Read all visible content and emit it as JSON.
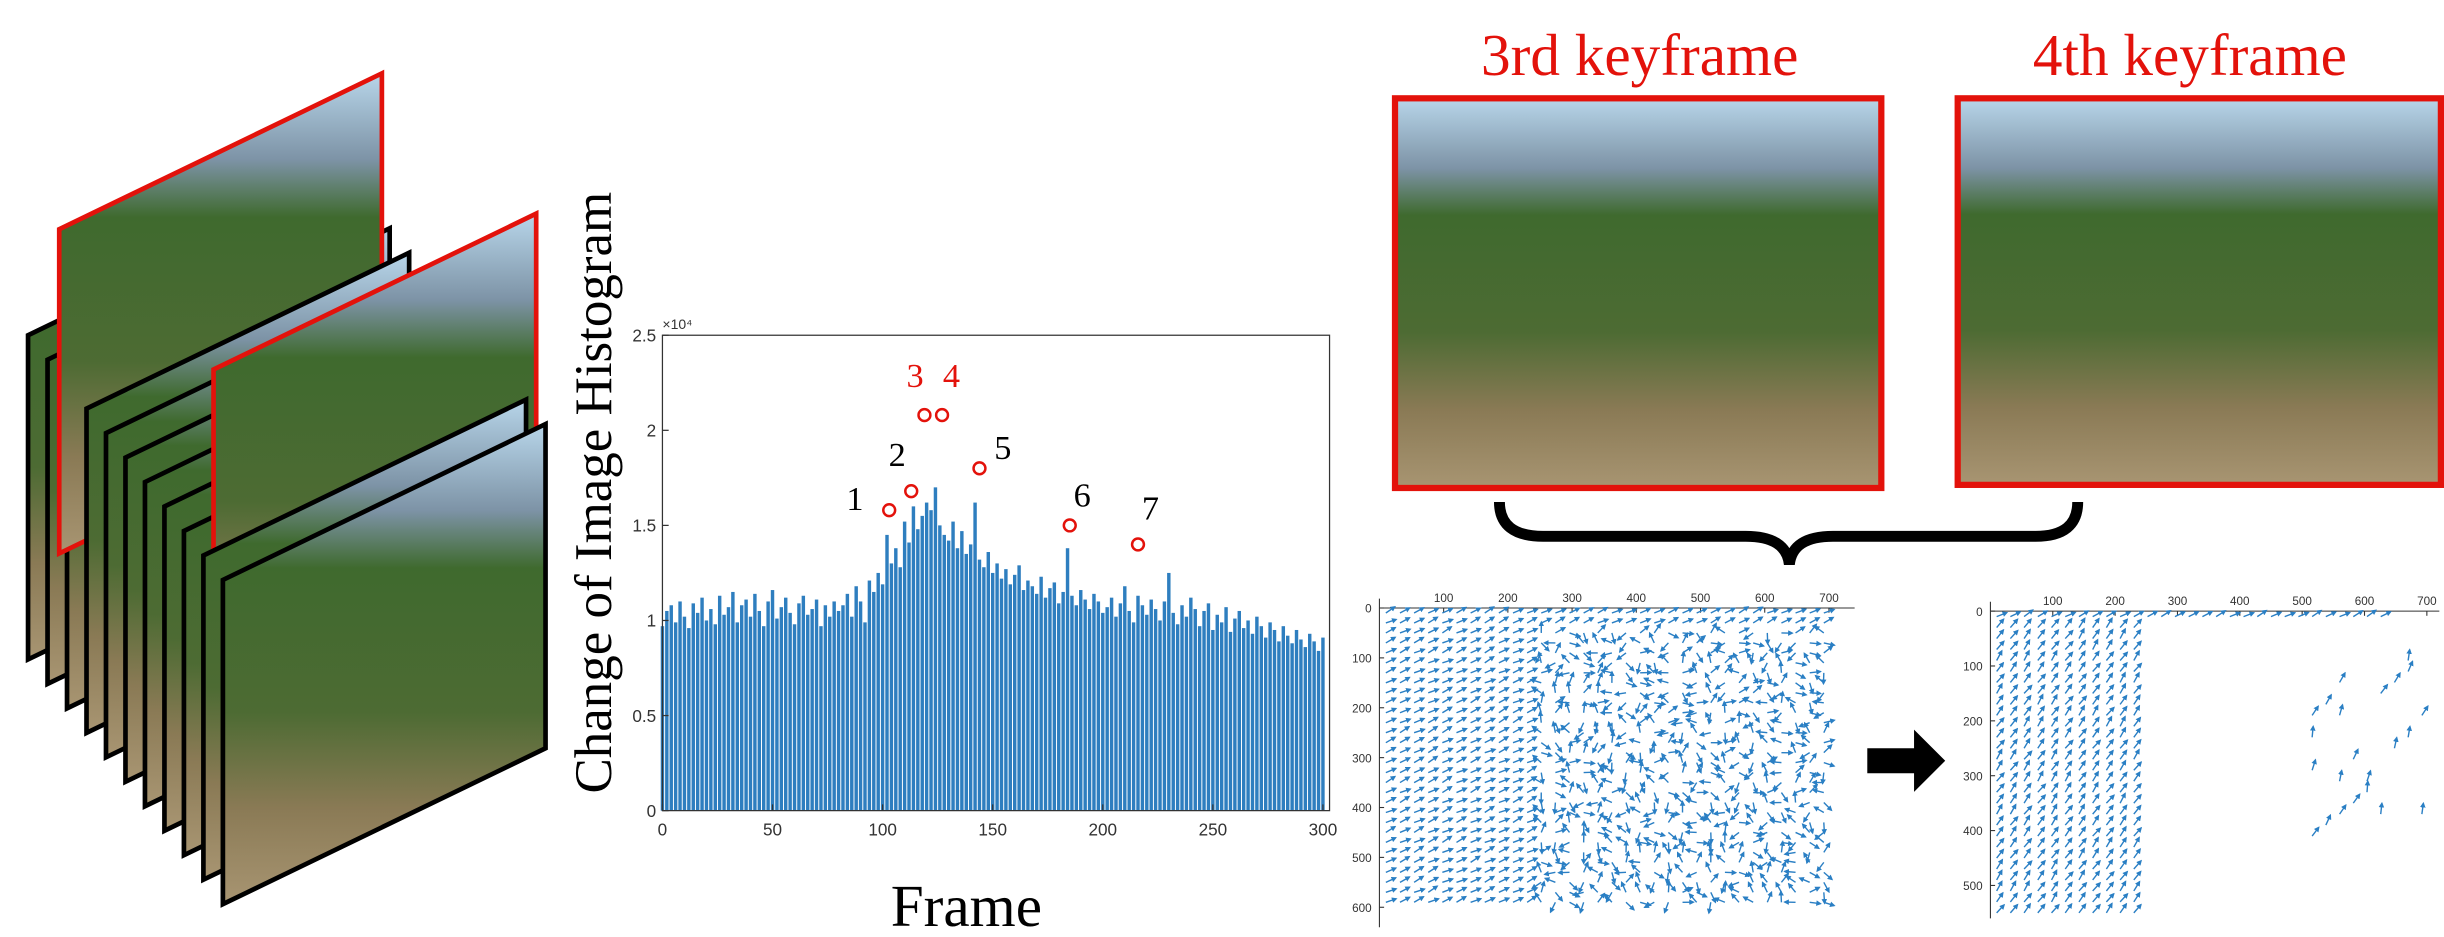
{
  "keyframe_titles": [
    "3rd keyframe",
    "4th keyframe"
  ],
  "chart_data": [
    {
      "type": "bar",
      "y_label": "Change of Image Histogram",
      "x_label": "Frame",
      "y_exponent": "×10⁴",
      "color": "#2e7ebf",
      "x": [
        0,
        2,
        4,
        6,
        8,
        10,
        12,
        14,
        16,
        18,
        20,
        22,
        24,
        26,
        28,
        30,
        32,
        34,
        36,
        38,
        40,
        42,
        44,
        46,
        48,
        50,
        52,
        54,
        56,
        58,
        60,
        62,
        64,
        66,
        68,
        70,
        72,
        74,
        76,
        78,
        80,
        82,
        84,
        86,
        88,
        90,
        92,
        94,
        96,
        98,
        100,
        102,
        104,
        106,
        108,
        110,
        112,
        114,
        116,
        118,
        120,
        122,
        124,
        126,
        128,
        130,
        132,
        134,
        136,
        138,
        140,
        142,
        144,
        146,
        148,
        150,
        152,
        154,
        156,
        158,
        160,
        162,
        164,
        166,
        168,
        170,
        172,
        174,
        176,
        178,
        180,
        182,
        184,
        186,
        188,
        190,
        192,
        194,
        196,
        198,
        200,
        202,
        204,
        206,
        208,
        210,
        212,
        214,
        216,
        218,
        220,
        222,
        224,
        226,
        228,
        230,
        232,
        234,
        236,
        238,
        240,
        242,
        244,
        246,
        248,
        250,
        252,
        254,
        256,
        258,
        260,
        262,
        264,
        266,
        268,
        270,
        272,
        274,
        276,
        278,
        280,
        282,
        284,
        286,
        288,
        290,
        292,
        294,
        296,
        298,
        300
      ],
      "values": [
        0.97,
        1.05,
        1.08,
        0.99,
        1.1,
        1.02,
        0.96,
        1.09,
        1.04,
        1.12,
        1.0,
        1.06,
        0.98,
        1.13,
        1.03,
        1.07,
        1.15,
        0.99,
        1.08,
        1.11,
        1.02,
        1.14,
        1.05,
        0.97,
        1.1,
        1.16,
        1.01,
        1.07,
        1.12,
        1.04,
        0.98,
        1.09,
        1.13,
        1.03,
        1.06,
        1.11,
        0.97,
        1.08,
        1.02,
        1.1,
        1.05,
        1.08,
        1.14,
        1.02,
        1.18,
        1.1,
        0.99,
        1.21,
        1.15,
        1.25,
        1.19,
        1.45,
        1.3,
        1.38,
        1.28,
        1.52,
        1.41,
        1.6,
        1.48,
        1.55,
        1.62,
        1.58,
        1.7,
        1.5,
        1.45,
        1.42,
        1.52,
        1.38,
        1.47,
        1.35,
        1.4,
        1.62,
        1.32,
        1.28,
        1.36,
        1.25,
        1.3,
        1.22,
        1.27,
        1.19,
        1.24,
        1.29,
        1.16,
        1.21,
        1.18,
        1.14,
        1.23,
        1.12,
        1.17,
        1.2,
        1.09,
        1.15,
        1.38,
        1.13,
        1.08,
        1.16,
        1.11,
        1.06,
        1.14,
        1.1,
        1.04,
        1.07,
        1.12,
        1.02,
        1.09,
        1.18,
        1.05,
        0.99,
        1.13,
        1.08,
        1.03,
        1.11,
        1.06,
        1.0,
        1.1,
        1.25,
        1.04,
        0.98,
        1.08,
        1.02,
        1.12,
        1.06,
        0.97,
        1.05,
        1.09,
        0.95,
        1.03,
        0.99,
        1.07,
        0.94,
        1.01,
        1.05,
        0.96,
        1.0,
        0.93,
        1.02,
        0.97,
        0.91,
        0.99,
        0.95,
        0.89,
        0.97,
        0.92,
        0.88,
        0.95,
        0.9,
        0.86,
        0.93,
        0.89,
        0.84,
        0.91
      ],
      "xlim": [
        0,
        303
      ],
      "ylim": [
        0,
        2.5
      ],
      "xticks": [
        0,
        50,
        100,
        150,
        200,
        250,
        300
      ],
      "yticks": [
        0,
        0.5,
        1,
        1.5,
        2,
        2.5
      ],
      "peaks": {
        "x": [
          103,
          113,
          119,
          127,
          144,
          185,
          216
        ],
        "values": [
          1.58,
          1.68,
          2.08,
          2.08,
          1.8,
          1.5,
          1.4
        ],
        "labels": [
          "1",
          "2",
          "3",
          "4",
          "5",
          "6",
          "7"
        ],
        "colors": [
          "#000000",
          "#000000",
          "#e3120b",
          "#e3120b",
          "#000000",
          "#000000",
          "#000000"
        ],
        "marker_color": "#e3120b"
      }
    },
    {
      "type": "quiver",
      "color": "#2a7fc4",
      "xlim": [
        0,
        740
      ],
      "ylim": [
        0,
        640
      ],
      "yreverse": true,
      "xticks": [
        100,
        200,
        300,
        400,
        500,
        600,
        700
      ],
      "yticks": [
        0,
        100,
        200,
        300,
        400,
        500,
        600
      ]
    },
    {
      "type": "quiver",
      "color": "#2a7fc4",
      "xlim": [
        0,
        720
      ],
      "ylim": [
        0,
        560
      ],
      "yreverse": true,
      "xticks": [
        100,
        200,
        300,
        400,
        500,
        600,
        700
      ],
      "yticks": [
        0,
        100,
        200,
        300,
        400,
        500
      ]
    }
  ]
}
